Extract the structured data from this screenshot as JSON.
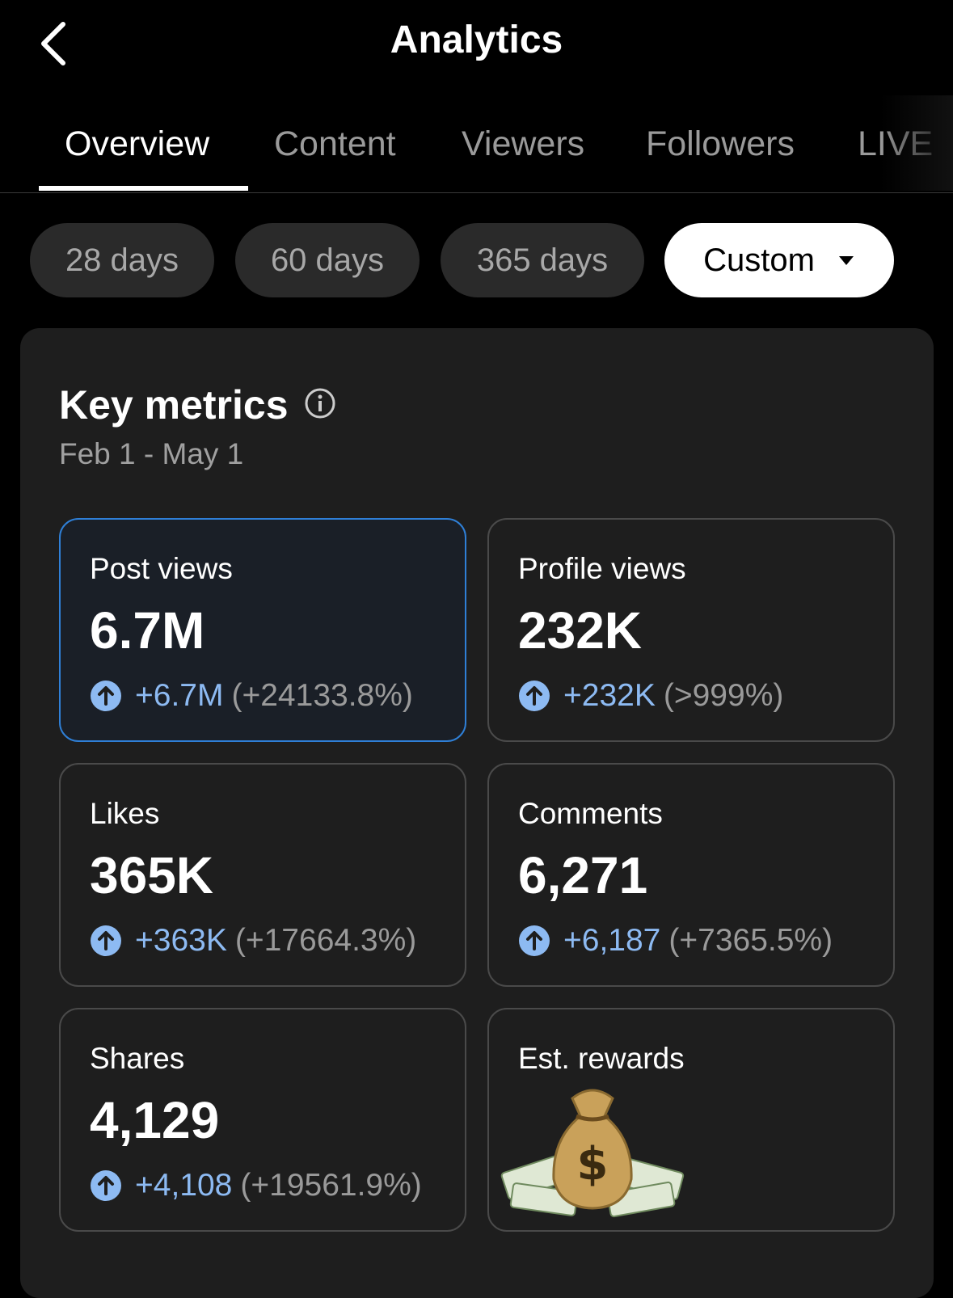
{
  "header": {
    "title": "Analytics"
  },
  "tabs": [
    "Overview",
    "Content",
    "Viewers",
    "Followers",
    "LIVE"
  ],
  "periods": [
    "28 days",
    "60 days",
    "365 days",
    "Custom"
  ],
  "key_metrics": {
    "title": "Key metrics",
    "date_range": "Feb 1 - May 1",
    "metrics": [
      {
        "label": "Post views",
        "value": "6.7M",
        "change": "+6.7M",
        "change_pct": "(+24133.8%)"
      },
      {
        "label": "Profile views",
        "value": "232K",
        "change": "+232K",
        "change_pct": "(>999%)"
      },
      {
        "label": "Likes",
        "value": "365K",
        "change": "+363K",
        "change_pct": "(+17664.3%)"
      },
      {
        "label": "Comments",
        "value": "6,271",
        "change": "+6,187",
        "change_pct": "(+7365.5%)"
      },
      {
        "label": "Shares",
        "value": "4,129",
        "change": "+4,108",
        "change_pct": "(+19561.9%)"
      },
      {
        "label": "Est. rewards"
      }
    ]
  }
}
